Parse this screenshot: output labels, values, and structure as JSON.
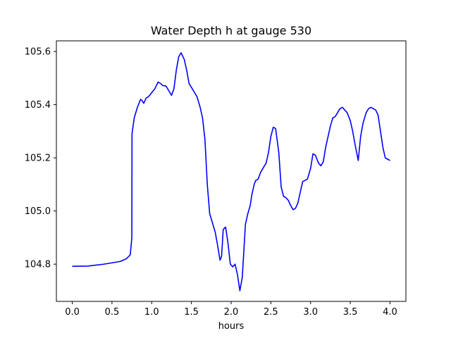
{
  "chart_data": {
    "type": "line",
    "title": "Water Depth h at gauge 530",
    "xlabel": "hours",
    "ylabel": "",
    "xlim": [
      -0.2,
      4.2
    ],
    "ylim": [
      104.66,
      105.64
    ],
    "xticks": [
      0.0,
      0.5,
      1.0,
      1.5,
      2.0,
      2.5,
      3.0,
      3.5,
      4.0
    ],
    "xtick_labels": [
      "0.0",
      "0.5",
      "1.0",
      "1.5",
      "2.0",
      "2.5",
      "3.0",
      "3.5",
      "4.0"
    ],
    "yticks": [
      104.8,
      105.0,
      105.2,
      105.4,
      105.6
    ],
    "ytick_labels": [
      "104.8",
      "105.0",
      "105.2",
      "105.4",
      "105.6"
    ],
    "grid": false,
    "series": [
      {
        "color": "#0000ff",
        "x": [
          0.0,
          0.2,
          0.4,
          0.6,
          0.68,
          0.73,
          0.75,
          0.752,
          0.78,
          0.82,
          0.86,
          0.88,
          0.9,
          0.93,
          0.96,
          1.0,
          1.04,
          1.08,
          1.11,
          1.14,
          1.18,
          1.22,
          1.25,
          1.28,
          1.31,
          1.34,
          1.37,
          1.41,
          1.44,
          1.47,
          1.51,
          1.54,
          1.57,
          1.61,
          1.64,
          1.67,
          1.7,
          1.73,
          1.77,
          1.8,
          1.83,
          1.86,
          1.88,
          1.9,
          1.93,
          1.96,
          1.99,
          2.02,
          2.05,
          2.08,
          2.11,
          2.14,
          2.16,
          2.18,
          2.21,
          2.24,
          2.26,
          2.29,
          2.31,
          2.34,
          2.37,
          2.4,
          2.44,
          2.47,
          2.5,
          2.53,
          2.56,
          2.6,
          2.63,
          2.66,
          2.69,
          2.72,
          2.75,
          2.78,
          2.81,
          2.84,
          2.87,
          2.9,
          2.93,
          2.96,
          3.0,
          3.03,
          3.06,
          3.1,
          3.13,
          3.16,
          3.19,
          3.22,
          3.25,
          3.28,
          3.31,
          3.34,
          3.37,
          3.4,
          3.43,
          3.46,
          3.5,
          3.53,
          3.56,
          3.6,
          3.63,
          3.66,
          3.7,
          3.73,
          3.76,
          3.79,
          3.82,
          3.85,
          3.88,
          3.91,
          3.94,
          3.97,
          4.0
        ],
        "y": [
          104.792,
          104.793,
          104.8,
          104.81,
          104.82,
          104.835,
          104.9,
          105.29,
          105.35,
          105.39,
          105.42,
          105.415,
          105.405,
          105.425,
          105.43,
          105.445,
          105.46,
          105.485,
          105.48,
          105.472,
          105.47,
          105.45,
          105.435,
          105.46,
          105.53,
          105.58,
          105.595,
          105.57,
          105.53,
          105.48,
          105.46,
          105.445,
          105.43,
          105.39,
          105.35,
          105.27,
          105.1,
          104.99,
          104.95,
          104.92,
          104.87,
          104.815,
          104.83,
          104.93,
          104.94,
          104.88,
          104.8,
          104.79,
          104.8,
          104.76,
          104.7,
          104.75,
          104.85,
          104.95,
          104.99,
          105.02,
          105.06,
          105.1,
          105.115,
          105.12,
          105.145,
          105.16,
          105.18,
          105.22,
          105.28,
          105.315,
          105.31,
          105.22,
          105.09,
          105.055,
          105.05,
          105.04,
          105.02,
          105.005,
          105.01,
          105.03,
          105.07,
          105.11,
          105.115,
          105.12,
          105.16,
          105.215,
          105.21,
          105.18,
          105.17,
          105.185,
          105.24,
          105.28,
          105.32,
          105.35,
          105.355,
          105.37,
          105.385,
          105.39,
          105.38,
          105.37,
          105.34,
          105.3,
          105.25,
          105.19,
          105.28,
          105.33,
          105.37,
          105.385,
          105.39,
          105.385,
          105.38,
          105.36,
          105.3,
          105.24,
          105.2,
          105.195,
          105.19
        ]
      }
    ]
  }
}
